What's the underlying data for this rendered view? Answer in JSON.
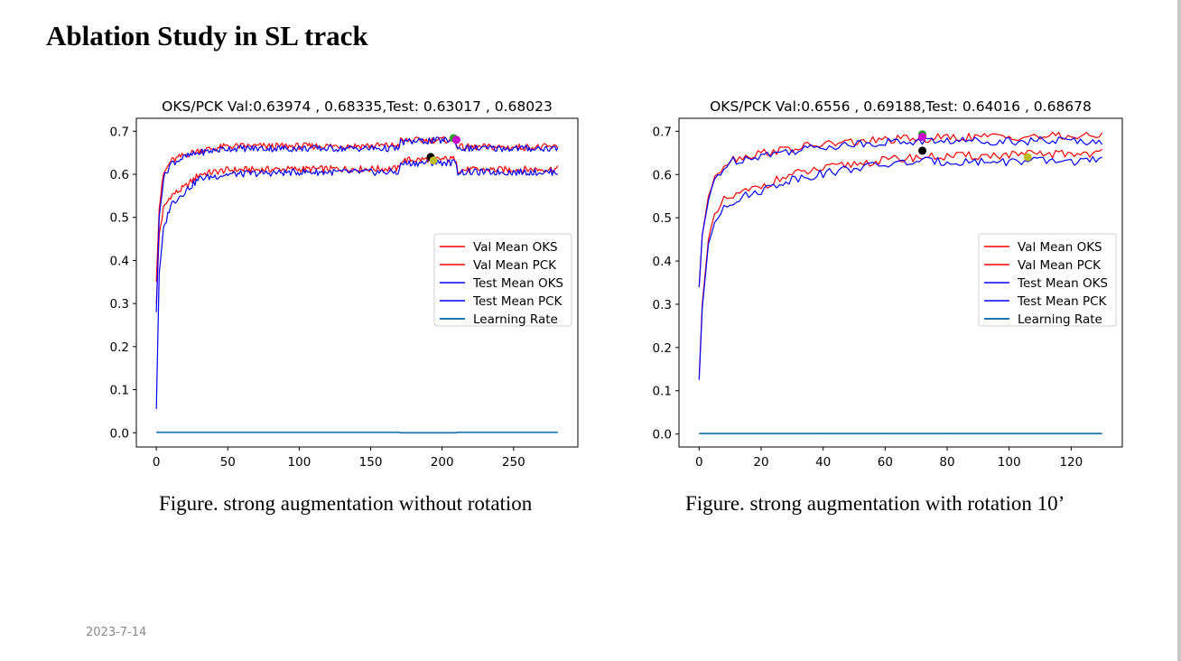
{
  "slide": {
    "title": "Ablation Study in SL track",
    "date": "2023-7-14"
  },
  "captions": [
    "Figure. strong augmentation without rotation",
    "Figure. strong augmentation with rotation 10’"
  ],
  "chart_data": [
    {
      "type": "line",
      "title": "OKS/PCK Val:0.63974 , 0.68335,Test: 0.63017 , 0.68023",
      "xlim": [
        -14,
        295
      ],
      "ylim": [
        -0.033,
        0.73
      ],
      "xticks": [
        0,
        50,
        100,
        150,
        200,
        250
      ],
      "yticks": [
        0.0,
        0.1,
        0.2,
        0.3,
        0.4,
        0.5,
        0.6,
        0.7
      ],
      "x_max": 281,
      "legend": {
        "position": "center-right",
        "entries": [
          {
            "label": "Val Mean OKS",
            "color": "#ff0000"
          },
          {
            "label": "Val Mean PCK",
            "color": "#ff0000"
          },
          {
            "label": "Test Mean OKS",
            "color": "#0000ff"
          },
          {
            "label": "Test Mean PCK",
            "color": "#0000ff"
          },
          {
            "label": "Learning Rate",
            "color": "#1f77b4"
          }
        ]
      },
      "series": [
        {
          "name": "Val Mean OKS",
          "color": "#ff0000",
          "start": 0.3,
          "keyframes": [
            [
              0,
              0.3
            ],
            [
              2,
              0.46
            ],
            [
              5,
              0.52
            ],
            [
              10,
              0.55
            ],
            [
              20,
              0.57
            ],
            [
              30,
              0.6
            ],
            [
              50,
              0.61
            ],
            [
              100,
              0.612
            ],
            [
              170,
              0.613
            ],
            [
              171,
              0.632
            ],
            [
              190,
              0.635
            ],
            [
              210,
              0.635
            ],
            [
              211,
              0.61
            ],
            [
              281,
              0.612
            ]
          ]
        },
        {
          "name": "Val Mean PCK",
          "color": "#ff0000",
          "start": 0.35,
          "keyframes": [
            [
              0,
              0.35
            ],
            [
              2,
              0.52
            ],
            [
              5,
              0.6
            ],
            [
              10,
              0.63
            ],
            [
              20,
              0.645
            ],
            [
              30,
              0.655
            ],
            [
              50,
              0.665
            ],
            [
              100,
              0.665
            ],
            [
              170,
              0.667
            ],
            [
              171,
              0.678
            ],
            [
              208,
              0.68
            ],
            [
              210,
              0.675
            ],
            [
              211,
              0.663
            ],
            [
              281,
              0.663
            ]
          ]
        },
        {
          "name": "Test Mean OKS",
          "color": "#0000ff",
          "start": 0.055,
          "keyframes": [
            [
              0,
              0.055
            ],
            [
              2,
              0.37
            ],
            [
              5,
              0.47
            ],
            [
              10,
              0.53
            ],
            [
              20,
              0.56
            ],
            [
              30,
              0.59
            ],
            [
              50,
              0.6
            ],
            [
              100,
              0.605
            ],
            [
              170,
              0.605
            ],
            [
              171,
              0.625
            ],
            [
              190,
              0.627
            ],
            [
              210,
              0.627
            ],
            [
              211,
              0.605
            ],
            [
              281,
              0.605
            ]
          ]
        },
        {
          "name": "Test Mean PCK",
          "color": "#0000ff",
          "start": 0.28,
          "keyframes": [
            [
              0,
              0.28
            ],
            [
              2,
              0.5
            ],
            [
              5,
              0.59
            ],
            [
              10,
              0.625
            ],
            [
              20,
              0.64
            ],
            [
              30,
              0.65
            ],
            [
              50,
              0.66
            ],
            [
              100,
              0.66
            ],
            [
              170,
              0.66
            ],
            [
              171,
              0.675
            ],
            [
              208,
              0.68
            ],
            [
              210,
              0.672
            ],
            [
              211,
              0.66
            ],
            [
              281,
              0.66
            ]
          ]
        },
        {
          "name": "Learning Rate",
          "color": "#1f77b4",
          "keyframes": [
            [
              0,
              0.001
            ],
            [
              170,
              0.001
            ],
            [
              171,
              0.0
            ],
            [
              210,
              0.0
            ],
            [
              211,
              0.001
            ],
            [
              281,
              0.001
            ]
          ]
        }
      ],
      "markers": [
        {
          "x": 192,
          "y": 0.64,
          "color": "#000000"
        },
        {
          "x": 194,
          "y": 0.632,
          "color": "#bcbd22"
        },
        {
          "x": 208,
          "y": 0.684,
          "color": "#2ca02c"
        },
        {
          "x": 210,
          "y": 0.68,
          "color": "#cc00cc"
        }
      ]
    },
    {
      "type": "line",
      "title": "OKS/PCK Val:0.6556 , 0.69188,Test: 0.64016 , 0.68678",
      "xlim": [
        -6.5,
        136.5
      ],
      "ylim": [
        -0.03,
        0.73
      ],
      "xticks": [
        0,
        20,
        40,
        60,
        80,
        100,
        120
      ],
      "yticks": [
        0.0,
        0.1,
        0.2,
        0.3,
        0.4,
        0.5,
        0.6,
        0.7
      ],
      "x_max": 130,
      "legend": {
        "position": "center-right",
        "entries": [
          {
            "label": "Val Mean OKS",
            "color": "#ff0000"
          },
          {
            "label": "Val Mean PCK",
            "color": "#ff0000"
          },
          {
            "label": "Test Mean OKS",
            "color": "#0000ff"
          },
          {
            "label": "Test Mean PCK",
            "color": "#0000ff"
          },
          {
            "label": "Learning Rate",
            "color": "#1f77b4"
          }
        ]
      },
      "series": [
        {
          "name": "Val Mean OKS",
          "color": "#ff0000",
          "keyframes": [
            [
              0,
              0.13
            ],
            [
              1,
              0.3
            ],
            [
              3,
              0.45
            ],
            [
              5,
              0.5
            ],
            [
              8,
              0.54
            ],
            [
              15,
              0.56
            ],
            [
              30,
              0.6
            ],
            [
              50,
              0.625
            ],
            [
              70,
              0.64
            ],
            [
              100,
              0.645
            ],
            [
              130,
              0.65
            ]
          ]
        },
        {
          "name": "Val Mean PCK",
          "color": "#ff0000",
          "keyframes": [
            [
              0,
              0.34
            ],
            [
              1,
              0.46
            ],
            [
              3,
              0.55
            ],
            [
              5,
              0.6
            ],
            [
              10,
              0.635
            ],
            [
              20,
              0.65
            ],
            [
              40,
              0.67
            ],
            [
              60,
              0.68
            ],
            [
              80,
              0.685
            ],
            [
              100,
              0.688
            ],
            [
              130,
              0.688
            ]
          ]
        },
        {
          "name": "Test Mean OKS",
          "color": "#0000ff",
          "keyframes": [
            [
              0,
              0.125
            ],
            [
              1,
              0.29
            ],
            [
              3,
              0.44
            ],
            [
              5,
              0.49
            ],
            [
              8,
              0.53
            ],
            [
              15,
              0.55
            ],
            [
              30,
              0.59
            ],
            [
              50,
              0.615
            ],
            [
              70,
              0.63
            ],
            [
              100,
              0.63
            ],
            [
              130,
              0.632
            ]
          ]
        },
        {
          "name": "Test Mean PCK",
          "color": "#0000ff",
          "keyframes": [
            [
              0,
              0.34
            ],
            [
              1,
              0.46
            ],
            [
              3,
              0.54
            ],
            [
              5,
              0.59
            ],
            [
              10,
              0.63
            ],
            [
              20,
              0.645
            ],
            [
              40,
              0.665
            ],
            [
              60,
              0.675
            ],
            [
              80,
              0.678
            ],
            [
              100,
              0.678
            ],
            [
              130,
              0.678
            ]
          ]
        },
        {
          "name": "Learning Rate",
          "color": "#1f77b4",
          "keyframes": [
            [
              0,
              0.001
            ],
            [
              130,
              0.001
            ]
          ]
        }
      ],
      "markers": [
        {
          "x": 72,
          "y": 0.655,
          "color": "#000000"
        },
        {
          "x": 106,
          "y": 0.64,
          "color": "#bcbd22"
        },
        {
          "x": 72,
          "y": 0.693,
          "color": "#2ca02c"
        },
        {
          "x": 72,
          "y": 0.687,
          "color": "#cc00cc"
        }
      ]
    }
  ]
}
